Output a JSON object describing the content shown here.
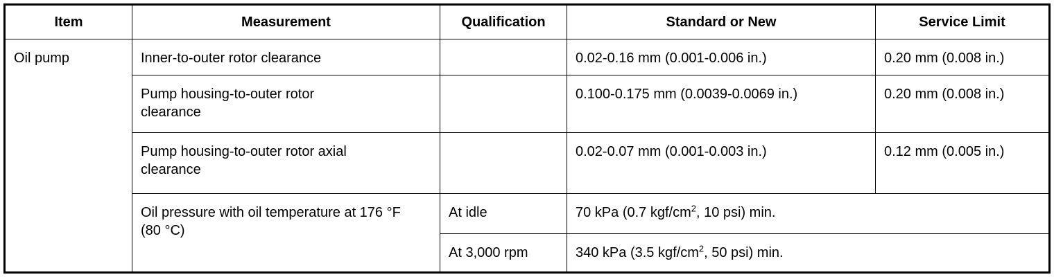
{
  "headers": [
    "Item",
    "Measurement",
    "Qualification",
    "Standard or New",
    "Service Limit"
  ],
  "item": "Oil pump",
  "rows": [
    {
      "measurement": "Inner-to-outer rotor clearance",
      "qualification": "",
      "standard": "0.02-0.16 mm (0.001-0.006 in.)",
      "limit": "0.20 mm (0.008 in.)"
    },
    {
      "measurement": "Pump housing-to-outer rotor clearance",
      "qualification": "",
      "standard": "0.100-0.175 mm (0.0039-0.0069 in.)",
      "limit": "0.20 mm (0.008 in.)"
    },
    {
      "measurement": "Pump housing-to-outer rotor axial clearance",
      "qualification": "",
      "standard": "0.02-0.07 mm (0.001-0.003 in.)",
      "limit": "0.12 mm (0.005 in.)"
    }
  ],
  "pressure": {
    "measurement": "Oil pressure with oil temperature at 176 °F (80 °C)",
    "idle": {
      "qualification": "At idle",
      "value_a": "70 kPa (0.7 kgf/cm",
      "sup": "2",
      "value_b": ", 10 psi) min."
    },
    "rpm": {
      "qualification": "At 3,000 rpm",
      "value_a": "340 kPa (3.5 kgf/cm",
      "sup": "2",
      "value_b": ", 50 psi) min."
    }
  }
}
